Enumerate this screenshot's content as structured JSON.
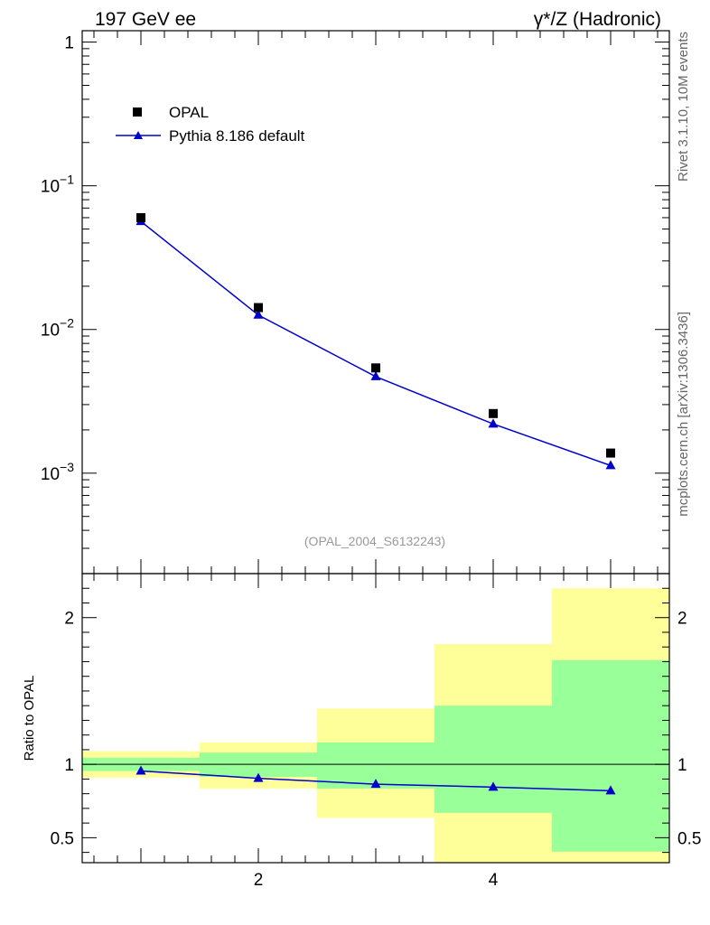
{
  "header": {
    "left_title": "197 GeV ee",
    "right_title": "γ*/Z (Hadronic)"
  },
  "side_labels": {
    "rivet": "Rivet 3.1.10,  10M events",
    "mcplots": "mcplots.cern.ch [arXiv:1306.3436]"
  },
  "watermark": "(OPAL_2004_S6132243)",
  "legend": {
    "data_label": "OPAL",
    "mc_label": "Pythia 8.186 default"
  },
  "colors": {
    "data": "#000000",
    "mc": "#0000cc",
    "band_inner": "#99ff99",
    "band_outer": "#ffff99"
  },
  "chart_data": [
    {
      "type": "scatter",
      "name": "main",
      "yscale": "log",
      "xlim": [
        0.5,
        5.5
      ],
      "ylim": [
        0.0002,
        1.2
      ],
      "y_tick_labels": [
        {
          "value": 1,
          "base": "1",
          "exp": ""
        },
        {
          "value": 0.1,
          "base": "10",
          "exp": "−1"
        },
        {
          "value": 0.01,
          "base": "10",
          "exp": "−2"
        },
        {
          "value": 0.001,
          "base": "10",
          "exp": "−3"
        }
      ],
      "series": [
        {
          "name": "OPAL",
          "marker": "square",
          "x": [
            1,
            2,
            3,
            4,
            5
          ],
          "values": [
            0.06,
            0.0142,
            0.0054,
            0.0026,
            0.00138
          ]
        },
        {
          "name": "Pythia 8.186 default",
          "marker": "triangle",
          "line": true,
          "x": [
            1,
            2,
            3,
            4,
            5
          ],
          "values": [
            0.0565,
            0.0126,
            0.0047,
            0.0022,
            0.00113
          ]
        }
      ]
    },
    {
      "type": "line",
      "name": "ratio",
      "ylabel": "Ratio to OPAL",
      "xlim": [
        0.5,
        5.5
      ],
      "ylim": [
        0.33,
        2.3
      ],
      "x_tick_labels": [
        "2",
        "4"
      ],
      "x_tick_values": [
        2,
        4
      ],
      "y_tick_labels": [
        "0.5",
        "1",
        "2"
      ],
      "y_tick_values": [
        0.5,
        1,
        2
      ],
      "bands": [
        {
          "x0": 0.5,
          "x1": 1.5,
          "inner": [
            0.955,
            1.045
          ],
          "outer": [
            0.91,
            1.09
          ]
        },
        {
          "x0": 1.5,
          "x1": 2.5,
          "inner": [
            0.915,
            1.08
          ],
          "outer": [
            0.835,
            1.15
          ]
        },
        {
          "x0": 2.5,
          "x1": 3.5,
          "inner": [
            0.835,
            1.15
          ],
          "outer": [
            0.635,
            1.38
          ]
        },
        {
          "x0": 3.5,
          "x1": 4.5,
          "inner": [
            0.67,
            1.4
          ],
          "outer": [
            0.33,
            1.82
          ]
        },
        {
          "x0": 4.5,
          "x1": 5.5,
          "inner": [
            0.405,
            1.71
          ],
          "outer": [
            0.33,
            2.2
          ]
        }
      ],
      "series": [
        {
          "name": "Pythia 8.186 default / OPAL",
          "x": [
            1,
            2,
            3,
            4,
            5
          ],
          "values": [
            0.955,
            0.905,
            0.865,
            0.845,
            0.82
          ]
        }
      ]
    }
  ]
}
